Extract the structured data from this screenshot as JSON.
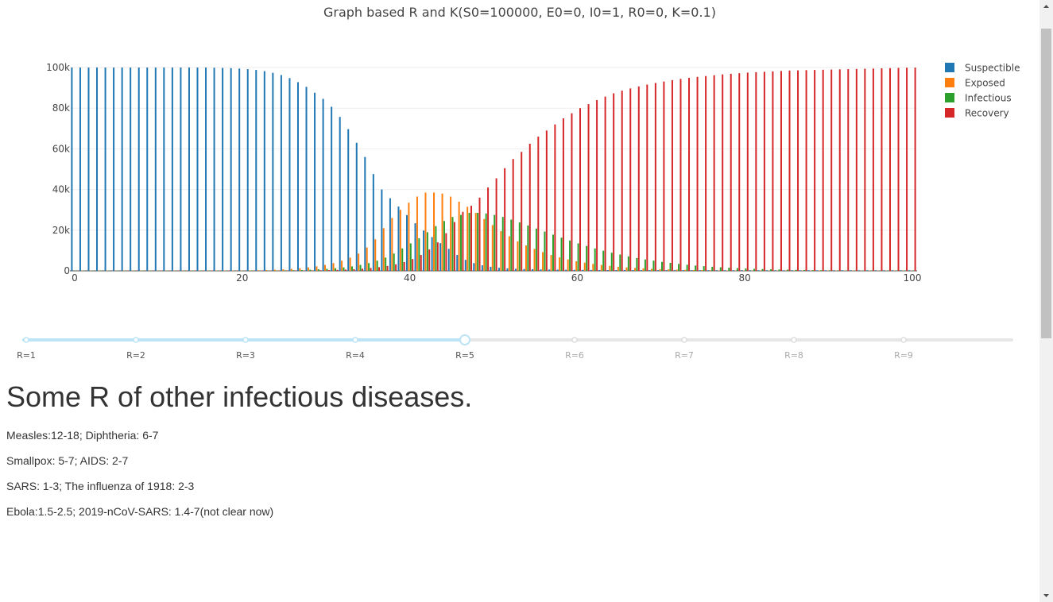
{
  "chart_data": {
    "type": "bar",
    "title": "Graph based R and K(S0=100000, E0=0, I0=1, R0=0, K=0.1)",
    "xlabel": "",
    "ylabel": "",
    "xlim": [
      0,
      100
    ],
    "ylim": [
      0,
      100000
    ],
    "x_ticks": [
      "0",
      "20",
      "40",
      "60",
      "80",
      "100"
    ],
    "y_ticks": [
      "0",
      "20k",
      "40k",
      "60k",
      "80k",
      "100k"
    ],
    "grid": true,
    "legend_position": "top-right",
    "x": [
      0,
      1,
      2,
      3,
      4,
      5,
      6,
      7,
      8,
      9,
      10,
      11,
      12,
      13,
      14,
      15,
      16,
      17,
      18,
      19,
      20,
      21,
      22,
      23,
      24,
      25,
      26,
      27,
      28,
      29,
      30,
      31,
      32,
      33,
      34,
      35,
      36,
      37,
      38,
      39,
      40,
      41,
      42,
      43,
      44,
      45,
      46,
      47,
      48,
      49,
      50,
      51,
      52,
      53,
      54,
      55,
      56,
      57,
      58,
      59,
      60,
      61,
      62,
      63,
      64,
      65,
      66,
      67,
      68,
      69,
      70,
      71,
      72,
      73,
      74,
      75,
      76,
      77,
      78,
      79,
      80,
      81,
      82,
      83,
      84,
      85,
      86,
      87,
      88,
      89,
      90,
      91,
      92,
      93,
      94,
      95,
      96,
      97,
      98,
      99,
      100
    ],
    "series": [
      {
        "name": "Suspectible",
        "color": "#1f77b4",
        "values": [
          100000,
          100000,
          100000,
          100000,
          100000,
          100000,
          100000,
          100000,
          100000,
          100000,
          100000,
          100000,
          100000,
          100000,
          100000,
          100000,
          100000,
          99900,
          99800,
          99700,
          99500,
          99200,
          98800,
          98200,
          97400,
          96300,
          94800,
          92800,
          90500,
          87600,
          84600,
          80700,
          75700,
          69700,
          63000,
          56000,
          47600,
          40000,
          35700,
          31600,
          27400,
          23400,
          19800,
          16600,
          13600,
          10800,
          7800,
          5400,
          3800,
          2700,
          2000,
          1500,
          1200,
          1000,
          900,
          800,
          700,
          650,
          600,
          550,
          500,
          470,
          450,
          430,
          410,
          400,
          390,
          380,
          370,
          360,
          350,
          345,
          340,
          335,
          330,
          325,
          320,
          318,
          315,
          312,
          310,
          308,
          306,
          304,
          302,
          300,
          299,
          298,
          297,
          296,
          295,
          294,
          293,
          292,
          291,
          290,
          289,
          288,
          287,
          286,
          285
        ]
      },
      {
        "name": "Exposed",
        "color": "#ff7f0e",
        "values": [
          0,
          1,
          1,
          2,
          2,
          3,
          4,
          5,
          7,
          9,
          12,
          15,
          20,
          26,
          34,
          45,
          60,
          80,
          105,
          140,
          180,
          240,
          320,
          420,
          560,
          740,
          980,
          1300,
          1700,
          2200,
          2900,
          3800,
          5000,
          6500,
          8500,
          11500,
          15500,
          21000,
          26000,
          30000,
          33500,
          36500,
          38500,
          38500,
          38000,
          36500,
          34000,
          31500,
          28500,
          25500,
          22500,
          19500,
          17000,
          14500,
          12500,
          10800,
          9200,
          7800,
          6600,
          5600,
          4700,
          4000,
          3400,
          2900,
          2400,
          2000,
          1700,
          1400,
          1200,
          1000,
          850,
          700,
          600,
          500,
          420,
          350,
          290,
          240,
          200,
          170,
          140,
          115,
          95,
          80,
          65,
          55,
          45,
          38,
          32,
          27,
          22,
          18,
          15,
          12,
          10,
          8,
          7,
          6,
          5,
          4,
          3
        ]
      },
      {
        "name": "Infectious",
        "color": "#2ca02c",
        "values": [
          1,
          1,
          1,
          1,
          1,
          2,
          2,
          2,
          3,
          4,
          5,
          6,
          8,
          10,
          13,
          17,
          22,
          28,
          36,
          47,
          60,
          80,
          105,
          140,
          185,
          245,
          320,
          420,
          560,
          740,
          980,
          1300,
          1700,
          2200,
          2900,
          3800,
          5000,
          6500,
          8500,
          11000,
          13500,
          16000,
          19000,
          22000,
          24500,
          26500,
          27500,
          28500,
          28500,
          28200,
          27500,
          26500,
          25200,
          23800,
          22300,
          20800,
          19300,
          17800,
          16300,
          14900,
          13500,
          12200,
          11000,
          9900,
          8900,
          8000,
          7100,
          6300,
          5600,
          5000,
          4400,
          3900,
          3400,
          3000,
          2600,
          2300,
          2000,
          1750,
          1520,
          1320,
          1150,
          1000,
          870,
          750,
          650,
          560,
          480,
          420,
          360,
          310,
          270,
          230,
          200,
          170,
          150,
          130,
          110,
          95,
          80,
          70,
          60
        ]
      },
      {
        "name": "Recovery",
        "color": "#d62728",
        "values": [
          0,
          0,
          0,
          0,
          0,
          0,
          1,
          1,
          1,
          2,
          2,
          3,
          4,
          5,
          6,
          8,
          10,
          13,
          17,
          22,
          28,
          36,
          47,
          61,
          79,
          102,
          132,
          171,
          222,
          288,
          374,
          485,
          630,
          820,
          1070,
          1400,
          1800,
          2400,
          3200,
          4300,
          5800,
          7800,
          10500,
          14000,
          18500,
          24000,
          29000,
          32000,
          36000,
          41000,
          45500,
          50500,
          55000,
          58500,
          62500,
          66000,
          69000,
          72000,
          75000,
          77500,
          80000,
          82000,
          84000,
          85700,
          87300,
          88600,
          89700,
          90700,
          91600,
          92400,
          93100,
          93800,
          94400,
          94900,
          95400,
          95800,
          96200,
          96600,
          96900,
          97200,
          97500,
          97700,
          97900,
          98100,
          98300,
          98500,
          98600,
          98700,
          98800,
          98900,
          99000,
          99100,
          99200,
          99300,
          99400,
          99500,
          99600,
          99700,
          99800,
          99900,
          99950
        ]
      }
    ]
  },
  "slider": {
    "steps": [
      "R=1",
      "R=2",
      "R=3",
      "R=4",
      "R=5",
      "R=6",
      "R=7",
      "R=8",
      "R=9"
    ],
    "active_index": 4,
    "active_color": "#bce4f6",
    "inactive_color": "#e6e6e6"
  },
  "content": {
    "heading": "Some R of other infectious diseases.",
    "lines": [
      "Measles:12-18; Diphtheria: 6-7",
      "Smallpox: 5-7; AIDS: 2-7",
      "SARS: 1-3; The influenza of 1918: 2-3",
      "Ebola:1.5-2.5; 2019-nCoV-SARS: 1.4-7(not clear now)"
    ]
  }
}
